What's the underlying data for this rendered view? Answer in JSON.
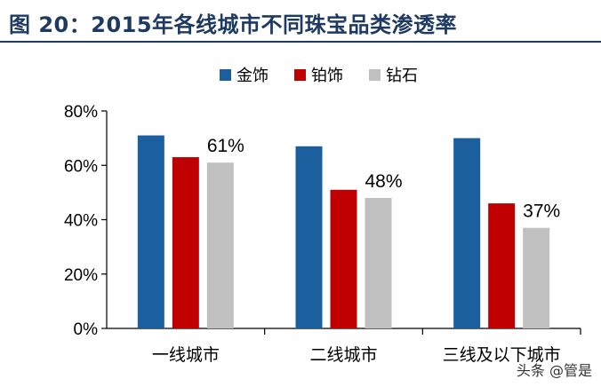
{
  "figure": {
    "title": "图 20：2015年各线城市不同珠宝品类渗透率"
  },
  "watermark": {
    "text": "头条 @管是"
  },
  "chart_data": {
    "type": "bar",
    "categories": [
      "一线城市",
      "二线城市",
      "三线及以下城市"
    ],
    "series": [
      {
        "name": "金饰",
        "color": "#1b5f9e",
        "values": [
          71,
          67,
          70
        ]
      },
      {
        "name": "铂饰",
        "color": "#c00000",
        "values": [
          63,
          51,
          46
        ]
      },
      {
        "name": "钻石",
        "color": "#c0c0c0",
        "values": [
          61,
          48,
          37
        ]
      }
    ],
    "data_labels": [
      {
        "series": 2,
        "index": 0,
        "text": "61%"
      },
      {
        "series": 2,
        "index": 1,
        "text": "48%"
      },
      {
        "series": 2,
        "index": 2,
        "text": "37%"
      }
    ],
    "ylim": [
      0,
      80
    ],
    "yticks": [
      0,
      20,
      40,
      60,
      80
    ],
    "ytick_labels": [
      "0%",
      "20%",
      "40%",
      "60%",
      "80%"
    ],
    "legend_position": "top-center",
    "grid": false
  }
}
